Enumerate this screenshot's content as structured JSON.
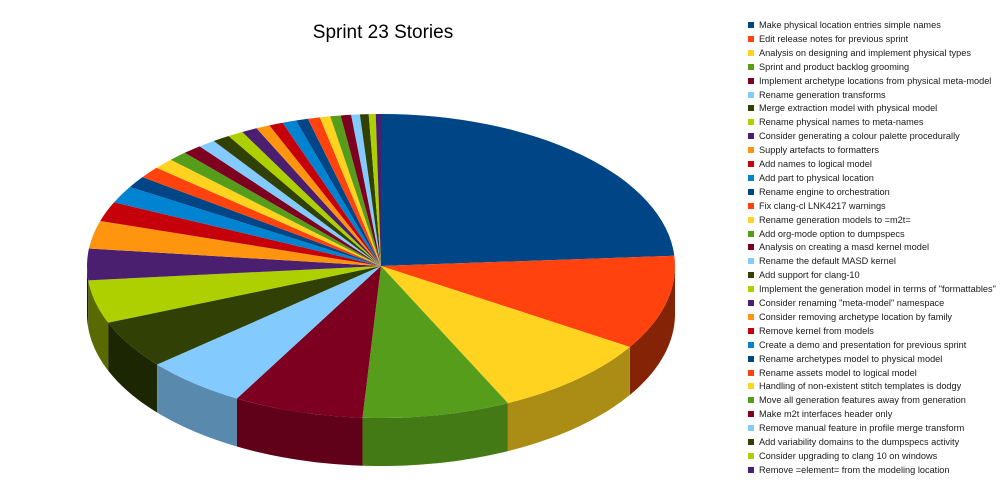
{
  "chart_data": {
    "type": "pie",
    "title": "Sprint 23 Stories",
    "legend_position": "right",
    "three_d": true,
    "slices": [
      {
        "label": "Make physical location entries simple names",
        "value": 25.1,
        "color": "#004586"
      },
      {
        "label": "Edit release notes for previous sprint",
        "value": 10.5,
        "color": "#ff420e"
      },
      {
        "label": "Analysis on designing and implement physical types",
        "value": 9.4,
        "color": "#ffd320"
      },
      {
        "label": "Sprint and product backlog grooming",
        "value": 8.5,
        "color": "#579d1c"
      },
      {
        "label": "Implement archetype locations from physical meta-model",
        "value": 7.5,
        "color": "#7e0021"
      },
      {
        "label": "Rename generation transforms",
        "value": 5.9,
        "color": "#83caff"
      },
      {
        "label": "Merge extraction model with physical model",
        "value": 5.4,
        "color": "#314004"
      },
      {
        "label": "Rename physical names to meta-names",
        "value": 4.8,
        "color": "#aecf00"
      },
      {
        "label": "Consider generating a colour palette procedurally",
        "value": 3.5,
        "color": "#4b1f6f"
      },
      {
        "label": "Supply artefacts to formatters",
        "value": 3.1,
        "color": "#ff950e"
      },
      {
        "label": "Add names to logical model",
        "value": 2.2,
        "color": "#c5000b"
      },
      {
        "label": "Add part to physical location",
        "value": 1.9,
        "color": "#0084d1"
      },
      {
        "label": "Rename engine to orchestration",
        "value": 1.3,
        "color": "#004586"
      },
      {
        "label": "Fix clang-cl LNK4217 warnings",
        "value": 1.3,
        "color": "#ff420e"
      },
      {
        "label": "Rename generation models to =m2t=",
        "value": 1.2,
        "color": "#ffd320"
      },
      {
        "label": "Add org-mode option to dumpspecs",
        "value": 1.1,
        "color": "#579d1c"
      },
      {
        "label": "Analysis on creating a masd kernel model",
        "value": 1.1,
        "color": "#7e0021"
      },
      {
        "label": "Rename the default MASD kernel",
        "value": 1.0,
        "color": "#83caff"
      },
      {
        "label": "Add support for clang-10",
        "value": 1.0,
        "color": "#314004"
      },
      {
        "label": "Implement the generation model in terms of \"formattables\"",
        "value": 0.9,
        "color": "#aecf00"
      },
      {
        "label": "Consider renaming \"meta-model\" namespace",
        "value": 0.9,
        "color": "#4b1f6f"
      },
      {
        "label": "Consider removing archetype location by family",
        "value": 0.8,
        "color": "#ff950e"
      },
      {
        "label": "Remove kernel from models",
        "value": 0.8,
        "color": "#c5000b"
      },
      {
        "label": "Create a demo and presentation for previous sprint",
        "value": 0.8,
        "color": "#0084d1"
      },
      {
        "label": "Rename archetypes model to physical model",
        "value": 0.7,
        "color": "#004586"
      },
      {
        "label": "Rename assets model to logical model",
        "value": 0.7,
        "color": "#ff420e"
      },
      {
        "label": "Handling of non-existent stitch templates is dodgy",
        "value": 0.6,
        "color": "#ffd320"
      },
      {
        "label": "Move all generation features away from generation",
        "value": 0.6,
        "color": "#579d1c"
      },
      {
        "label": "Make m2t interfaces header only",
        "value": 0.6,
        "color": "#7e0021"
      },
      {
        "label": "Remove manual feature in profile merge transform",
        "value": 0.5,
        "color": "#83caff"
      },
      {
        "label": "Add variability domains to the dumpspecs activity",
        "value": 0.5,
        "color": "#314004"
      },
      {
        "label": "Consider upgrading to clang 10 on windows",
        "value": 0.4,
        "color": "#aecf00"
      },
      {
        "label": "Remove =element= from the modeling location",
        "value": 0.3,
        "color": "#4b1f6f"
      }
    ]
  }
}
